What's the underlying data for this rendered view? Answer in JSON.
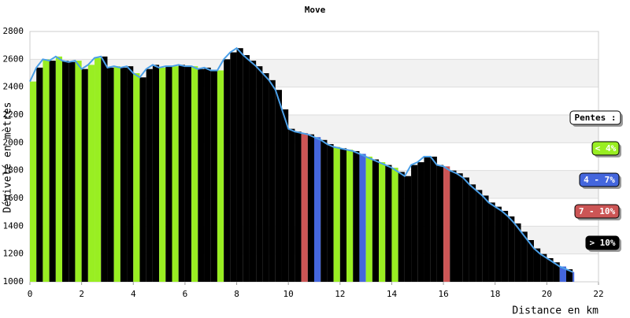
{
  "chart_data": {
    "type": "elevation-profile",
    "title": "Move",
    "x_label": "Distance en km",
    "y_label": "Dénivelé en mètres",
    "x": [
      0,
      0.25,
      0.5,
      0.75,
      1,
      1.25,
      1.5,
      1.75,
      2,
      2.25,
      2.5,
      2.75,
      3,
      3.25,
      3.5,
      3.75,
      4,
      4.25,
      4.5,
      4.75,
      5,
      5.25,
      5.5,
      5.75,
      6,
      6.25,
      6.5,
      6.75,
      7,
      7.25,
      7.5,
      7.75,
      8,
      8.25,
      8.5,
      8.75,
      9,
      9.25,
      9.5,
      9.75,
      10,
      10.25,
      10.5,
      10.75,
      11,
      11.25,
      11.5,
      11.75,
      12,
      12.25,
      12.5,
      12.75,
      13,
      13.25,
      13.5,
      13.75,
      14,
      14.25,
      14.5,
      14.75,
      15,
      15.25,
      15.5,
      15.75,
      16,
      16.25,
      16.5,
      16.75,
      17,
      17.25,
      17.5,
      17.75,
      18,
      18.25,
      18.5,
      18.75,
      19,
      19.25,
      19.5,
      19.75,
      20,
      20.25,
      20.5,
      20.75,
      21
    ],
    "values": [
      2440,
      2540,
      2600,
      2590,
      2620,
      2590,
      2580,
      2590,
      2530,
      2560,
      2610,
      2620,
      2540,
      2550,
      2540,
      2550,
      2500,
      2470,
      2530,
      2560,
      2540,
      2550,
      2550,
      2560,
      2550,
      2550,
      2530,
      2540,
      2520,
      2520,
      2600,
      2650,
      2680,
      2630,
      2590,
      2550,
      2500,
      2450,
      2380,
      2240,
      2100,
      2080,
      2070,
      2060,
      2040,
      2020,
      1990,
      1970,
      1960,
      1950,
      1940,
      1920,
      1900,
      1880,
      1860,
      1840,
      1820,
      1790,
      1760,
      1840,
      1860,
      1900,
      1900,
      1840,
      1830,
      1800,
      1780,
      1750,
      1700,
      1660,
      1620,
      1570,
      1540,
      1510,
      1470,
      1420,
      1360,
      1300,
      1240,
      1200,
      1170,
      1140,
      1110,
      1090,
      1070
    ],
    "slope_classes": [
      0,
      3,
      0,
      3,
      0,
      3,
      3,
      0,
      3,
      0,
      0,
      3,
      3,
      0,
      3,
      3,
      0,
      3,
      3,
      3,
      0,
      3,
      0,
      3,
      3,
      0,
      3,
      3,
      3,
      0,
      3,
      3,
      3,
      3,
      3,
      3,
      3,
      3,
      3,
      3,
      3,
      3,
      2,
      3,
      1,
      3,
      3,
      0,
      3,
      0,
      3,
      1,
      0,
      3,
      0,
      3,
      0,
      3,
      3,
      3,
      3,
      3,
      3,
      3,
      2,
      3,
      3,
      3,
      3,
      3,
      3,
      3,
      3,
      3,
      3,
      3,
      3,
      3,
      3,
      3,
      3,
      3,
      1,
      3,
      1
    ],
    "line_color": "#4a9fe8",
    "legend": {
      "title": "Pentes :",
      "items": [
        {
          "label": "< 4%",
          "color": "#99ee22"
        },
        {
          "label": "4 - 7%",
          "color": "#4466dd"
        },
        {
          "label": "7 - 10%",
          "color": "#cc5555"
        },
        {
          "label": "> 10%",
          "color": "#000000"
        }
      ]
    },
    "xlim": [
      0,
      22
    ],
    "xticks": [
      0,
      2,
      4,
      6,
      8,
      10,
      12,
      14,
      16,
      18,
      20,
      22
    ],
    "ylim": [
      1000,
      2800
    ],
    "yticks": [
      1000,
      1200,
      1400,
      1600,
      1800,
      2000,
      2200,
      2400,
      2600,
      2800
    ]
  }
}
